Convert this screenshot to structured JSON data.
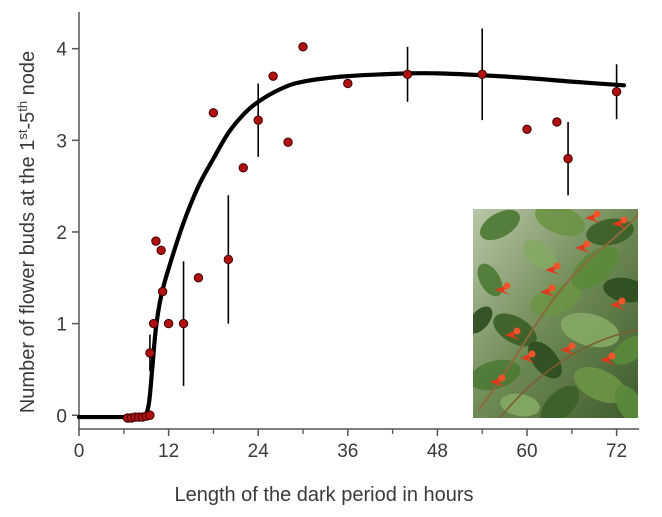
{
  "chart_data": {
    "type": "scatter",
    "xlabel": "Length of the dark period in hours",
    "ylabel_parts": [
      "Number of flower buds at the 1",
      "st",
      "-5",
      "th",
      " node"
    ],
    "xlim": [
      0,
      75
    ],
    "ylim": [
      -0.15,
      4.4
    ],
    "x_ticks": [
      0,
      12,
      24,
      36,
      48,
      60,
      72
    ],
    "x_tick_labels": [
      "0",
      "12",
      "24",
      "36",
      "48",
      "60",
      "72"
    ],
    "x_minor_ticks": [
      6,
      18,
      30,
      42,
      54,
      66
    ],
    "y_ticks": [
      0,
      1,
      2,
      3,
      4
    ],
    "y_tick_labels": [
      "0",
      "1",
      "2",
      "3",
      "4"
    ],
    "grid": false,
    "legend": "none",
    "colors": {
      "points": "#b01010",
      "curve": "#000000",
      "axes": "#555555"
    },
    "points": [
      {
        "x": 6.5,
        "y": -0.03
      },
      {
        "x": 7,
        "y": -0.03
      },
      {
        "x": 7.5,
        "y": -0.02
      },
      {
        "x": 8,
        "y": -0.02
      },
      {
        "x": 8.5,
        "y": -0.02
      },
      {
        "x": 9,
        "y": -0.01
      },
      {
        "x": 9.5,
        "y": 0
      },
      {
        "x": 9.5,
        "y": 0.68,
        "err": 0.2
      },
      {
        "x": 10,
        "y": 1.0
      },
      {
        "x": 10.3,
        "y": 1.9
      },
      {
        "x": 11,
        "y": 1.8
      },
      {
        "x": 11.2,
        "y": 1.35
      },
      {
        "x": 12,
        "y": 1.0
      },
      {
        "x": 14,
        "y": 1.0,
        "err": 0.68
      },
      {
        "x": 16,
        "y": 1.5
      },
      {
        "x": 18,
        "y": 3.3
      },
      {
        "x": 20,
        "y": 1.7,
        "err": 0.7
      },
      {
        "x": 22,
        "y": 2.7
      },
      {
        "x": 24,
        "y": 3.22,
        "err": 0.4
      },
      {
        "x": 26,
        "y": 3.7
      },
      {
        "x": 28,
        "y": 2.98
      },
      {
        "x": 30,
        "y": 4.02
      },
      {
        "x": 36,
        "y": 3.62
      },
      {
        "x": 44,
        "y": 3.72,
        "err": 0.3
      },
      {
        "x": 54,
        "y": 3.72,
        "err": 0.5
      },
      {
        "x": 60,
        "y": 3.12
      },
      {
        "x": 64,
        "y": 3.2
      },
      {
        "x": 65.5,
        "y": 2.8,
        "err": 0.4
      },
      {
        "x": 72,
        "y": 3.53,
        "err": 0.3
      }
    ],
    "fit_curve": [
      [
        0,
        -0.02
      ],
      [
        6,
        -0.02
      ],
      [
        8.5,
        -0.02
      ],
      [
        9.3,
        0.1
      ],
      [
        9.8,
        0.5
      ],
      [
        10.3,
        0.95
      ],
      [
        11,
        1.3
      ],
      [
        12,
        1.6
      ],
      [
        14,
        2.1
      ],
      [
        16,
        2.5
      ],
      [
        18,
        2.8
      ],
      [
        20,
        3.08
      ],
      [
        22,
        3.28
      ],
      [
        24,
        3.42
      ],
      [
        27,
        3.56
      ],
      [
        30,
        3.64
      ],
      [
        36,
        3.7
      ],
      [
        44,
        3.73
      ],
      [
        48,
        3.73
      ],
      [
        54,
        3.71
      ],
      [
        60,
        3.68
      ],
      [
        66,
        3.64
      ],
      [
        73,
        3.6
      ]
    ]
  },
  "inset_photo": {
    "icon": "flowering-vine-photo-icon"
  }
}
